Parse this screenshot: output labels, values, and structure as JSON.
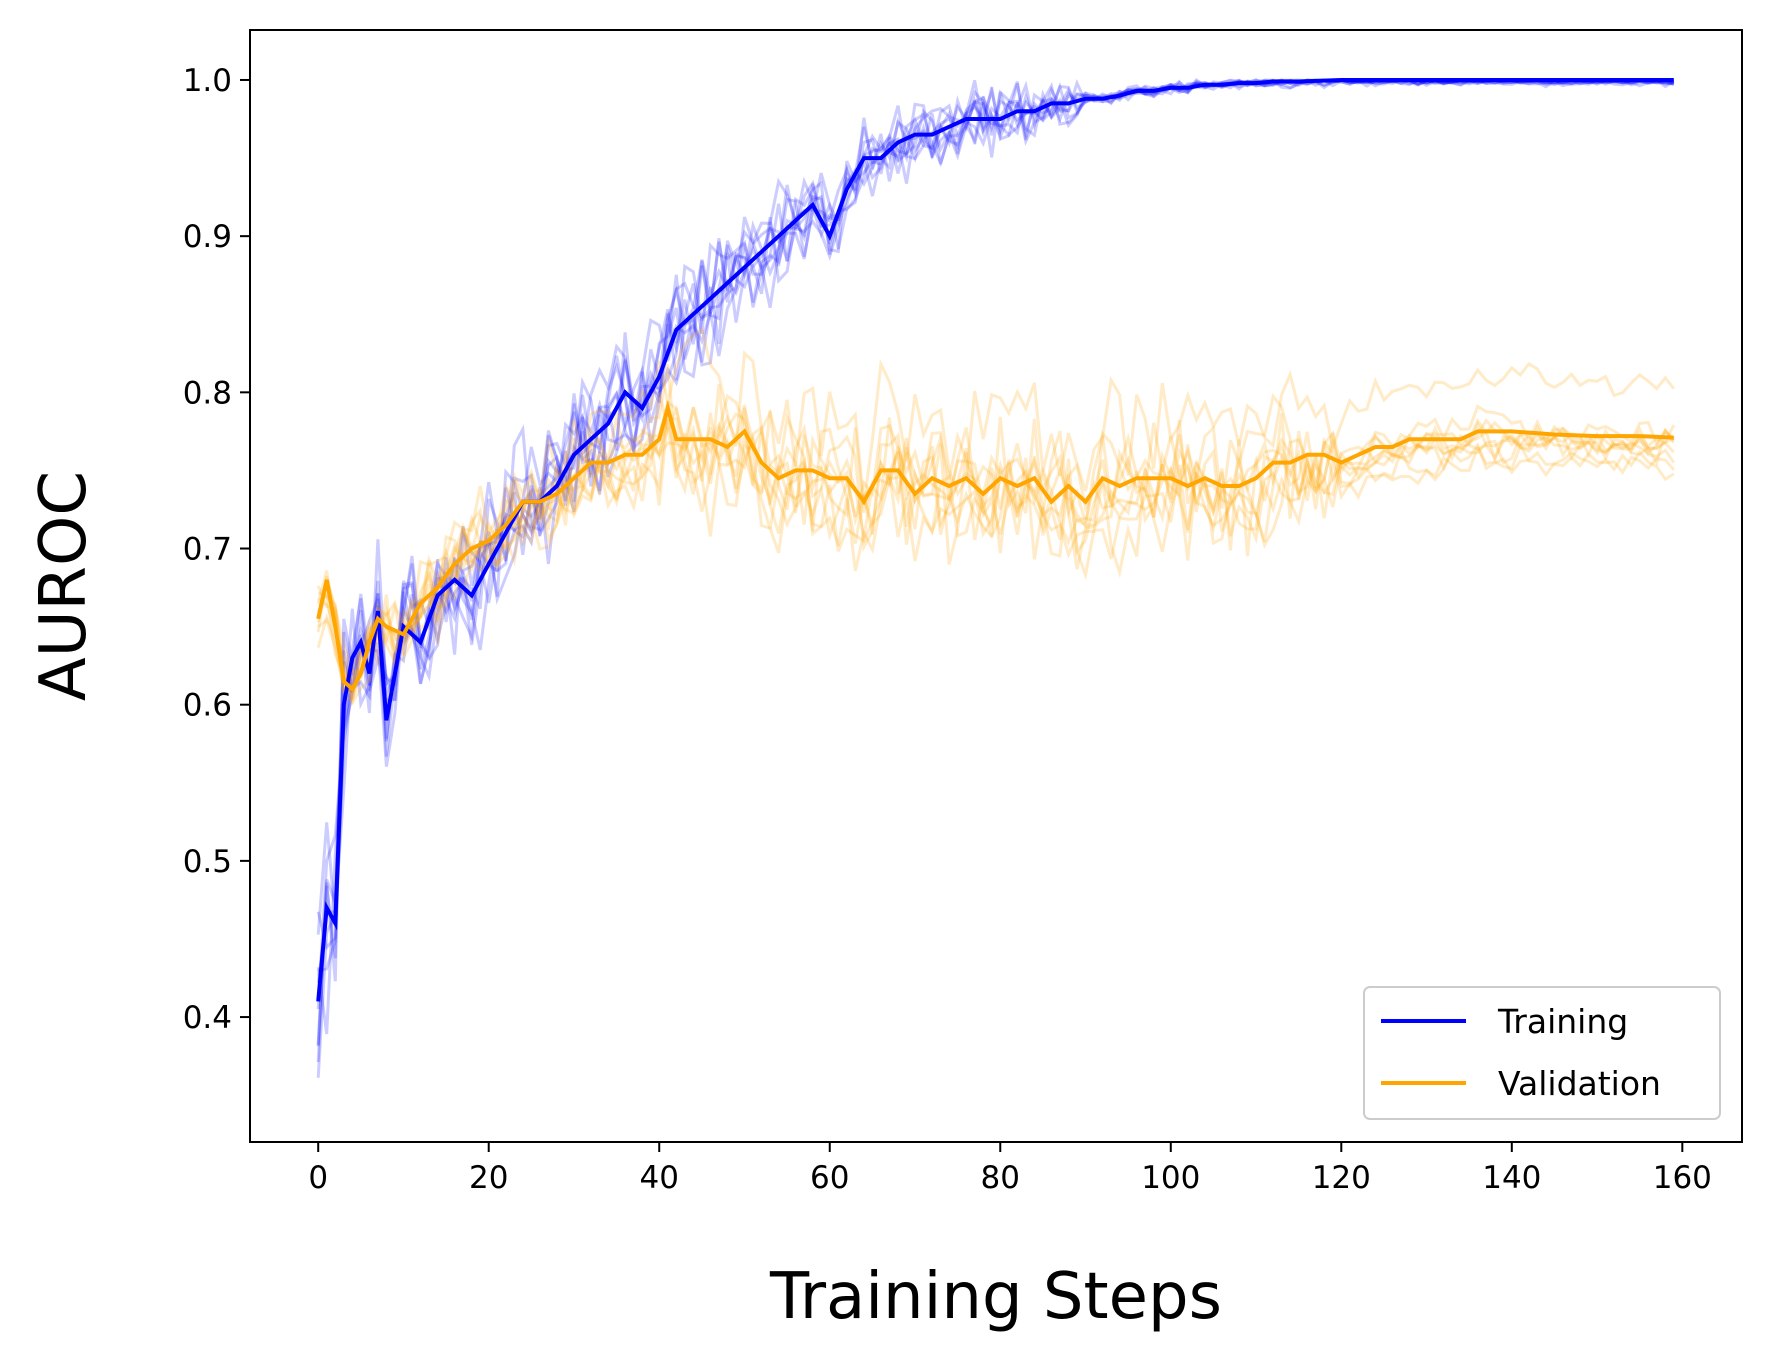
{
  "chart_data": {
    "type": "line",
    "xlabel": "Training Steps",
    "ylabel": "AUROC",
    "xlim": [
      -8,
      167
    ],
    "ylim": [
      0.32,
      1.032
    ],
    "xticks": [
      0,
      20,
      40,
      60,
      80,
      100,
      120,
      140,
      160
    ],
    "yticks": [
      0.4,
      0.5,
      0.6,
      0.7,
      0.8,
      0.9,
      1.0
    ],
    "legend_position": "bottom-right",
    "grid": false,
    "series": [
      {
        "name": "Training",
        "color": "#0000ff",
        "x": [
          0,
          1,
          2,
          3,
          4,
          5,
          6,
          7,
          8,
          10,
          12,
          14,
          16,
          18,
          20,
          22,
          24,
          26,
          28,
          30,
          32,
          34,
          36,
          38,
          40,
          42,
          44,
          46,
          48,
          50,
          52,
          54,
          56,
          58,
          60,
          62,
          64,
          66,
          68,
          70,
          72,
          74,
          76,
          78,
          80,
          82,
          84,
          86,
          88,
          90,
          92,
          94,
          96,
          98,
          100,
          102,
          104,
          106,
          108,
          110,
          112,
          115,
          120,
          125,
          130,
          135,
          140,
          145,
          150,
          155,
          159
        ],
        "y": [
          0.41,
          0.47,
          0.46,
          0.6,
          0.63,
          0.64,
          0.62,
          0.66,
          0.59,
          0.65,
          0.64,
          0.67,
          0.68,
          0.67,
          0.69,
          0.71,
          0.73,
          0.73,
          0.74,
          0.76,
          0.77,
          0.78,
          0.8,
          0.79,
          0.81,
          0.84,
          0.85,
          0.86,
          0.87,
          0.88,
          0.89,
          0.9,
          0.91,
          0.92,
          0.9,
          0.93,
          0.95,
          0.95,
          0.96,
          0.965,
          0.965,
          0.97,
          0.975,
          0.975,
          0.975,
          0.98,
          0.98,
          0.985,
          0.985,
          0.988,
          0.988,
          0.99,
          0.993,
          0.993,
          0.995,
          0.995,
          0.997,
          0.997,
          0.998,
          0.998,
          0.999,
          0.999,
          1.0,
          1.0,
          1.0,
          1.0,
          1.0,
          1.0,
          1.0,
          1.0,
          1.0
        ]
      },
      {
        "name": "Validation",
        "color": "#ffa500",
        "x": [
          0,
          1,
          2,
          3,
          4,
          5,
          6,
          7,
          8,
          10,
          12,
          14,
          16,
          18,
          20,
          22,
          24,
          26,
          28,
          30,
          32,
          34,
          36,
          38,
          40,
          41,
          42,
          44,
          46,
          48,
          50,
          52,
          54,
          56,
          58,
          60,
          62,
          64,
          66,
          68,
          70,
          72,
          74,
          76,
          78,
          80,
          82,
          84,
          86,
          88,
          90,
          92,
          94,
          96,
          98,
          100,
          102,
          104,
          106,
          108,
          110,
          112,
          114,
          116,
          118,
          120,
          122,
          124,
          126,
          128,
          130,
          132,
          134,
          136,
          138,
          140,
          145,
          150,
          155,
          159
        ],
        "y": [
          0.655,
          0.68,
          0.65,
          0.615,
          0.61,
          0.62,
          0.64,
          0.655,
          0.65,
          0.645,
          0.665,
          0.675,
          0.69,
          0.7,
          0.705,
          0.715,
          0.73,
          0.73,
          0.735,
          0.745,
          0.755,
          0.755,
          0.76,
          0.76,
          0.77,
          0.79,
          0.77,
          0.77,
          0.77,
          0.765,
          0.775,
          0.755,
          0.745,
          0.75,
          0.75,
          0.745,
          0.745,
          0.73,
          0.75,
          0.75,
          0.735,
          0.745,
          0.74,
          0.745,
          0.735,
          0.745,
          0.74,
          0.745,
          0.73,
          0.74,
          0.73,
          0.745,
          0.74,
          0.745,
          0.745,
          0.745,
          0.74,
          0.745,
          0.74,
          0.74,
          0.745,
          0.755,
          0.755,
          0.76,
          0.76,
          0.755,
          0.76,
          0.765,
          0.765,
          0.77,
          0.77,
          0.77,
          0.77,
          0.775,
          0.775,
          0.775,
          0.773,
          0.772,
          0.772,
          0.771
        ]
      }
    ]
  }
}
